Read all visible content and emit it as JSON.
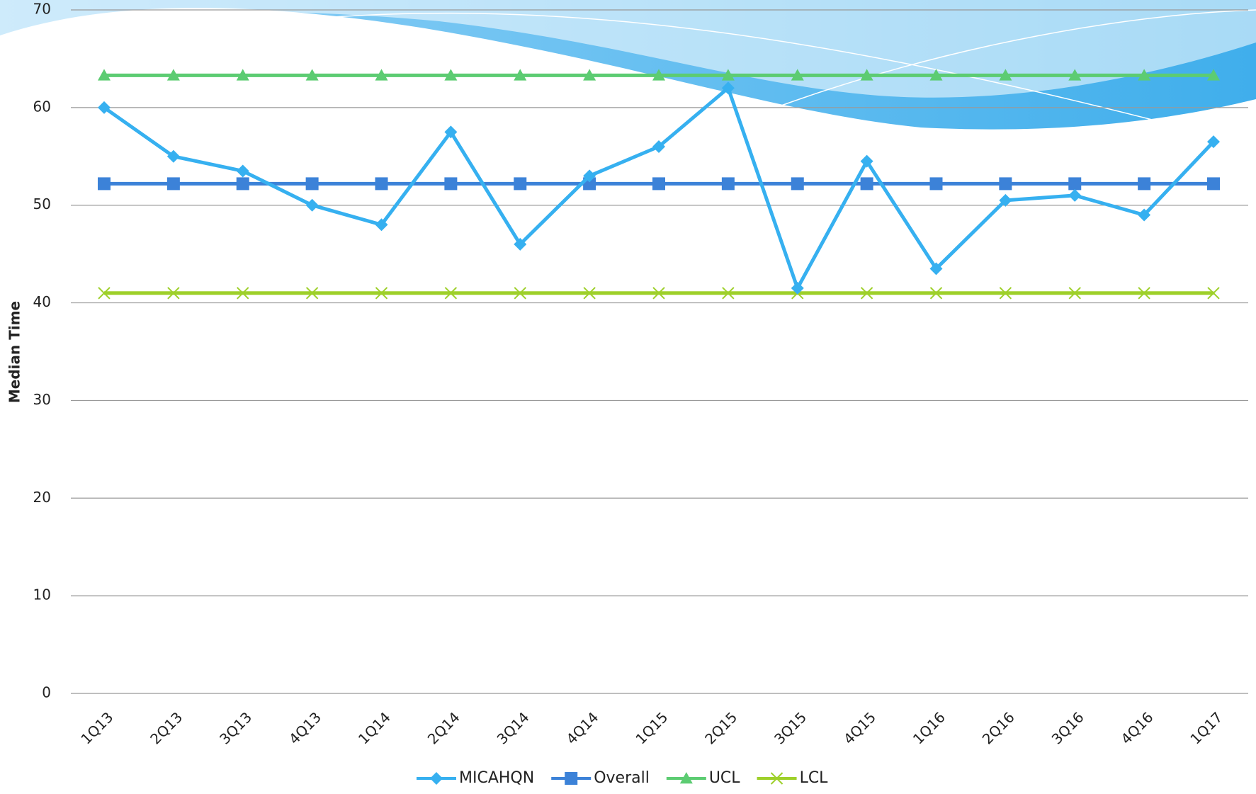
{
  "chart_data": {
    "type": "line",
    "y_label": "Median Time",
    "categories": [
      "1Q13",
      "2Q13",
      "3Q13",
      "4Q13",
      "1Q14",
      "2Q14",
      "3Q14",
      "4Q14",
      "1Q15",
      "2Q15",
      "3Q15",
      "4Q15",
      "1Q16",
      "2Q16",
      "3Q16",
      "4Q16",
      "1Q17"
    ],
    "series": [
      {
        "name": "MICAHQN",
        "color": "#36b0f0",
        "marker": "diamond",
        "values": [
          60,
          55,
          53.5,
          50,
          48,
          57.5,
          46,
          53,
          56,
          62,
          41.5,
          54.5,
          43.5,
          50.5,
          51,
          49,
          56.5
        ]
      },
      {
        "name": "Overall",
        "color": "#3c82d8",
        "marker": "square",
        "values": [
          52.2,
          52.2,
          52.2,
          52.2,
          52.2,
          52.2,
          52.2,
          52.2,
          52.2,
          52.2,
          52.2,
          52.2,
          52.2,
          52.2,
          52.2,
          52.2,
          52.2
        ]
      },
      {
        "name": "UCL",
        "color": "#5ccc72",
        "marker": "triangle",
        "values": [
          63.3,
          63.3,
          63.3,
          63.3,
          63.3,
          63.3,
          63.3,
          63.3,
          63.3,
          63.3,
          63.3,
          63.3,
          63.3,
          63.3,
          63.3,
          63.3,
          63.3
        ]
      },
      {
        "name": "LCL",
        "color": "#9ed02a",
        "marker": "x",
        "values": [
          41,
          41,
          41,
          41,
          41,
          41,
          41,
          41,
          41,
          41,
          41,
          41,
          41,
          41,
          41,
          41,
          41
        ]
      }
    ],
    "ylim": [
      0,
      70
    ],
    "yticks": [
      0,
      10,
      20,
      30,
      40,
      50,
      60,
      70
    ],
    "grid": true,
    "legend": "bottom"
  }
}
